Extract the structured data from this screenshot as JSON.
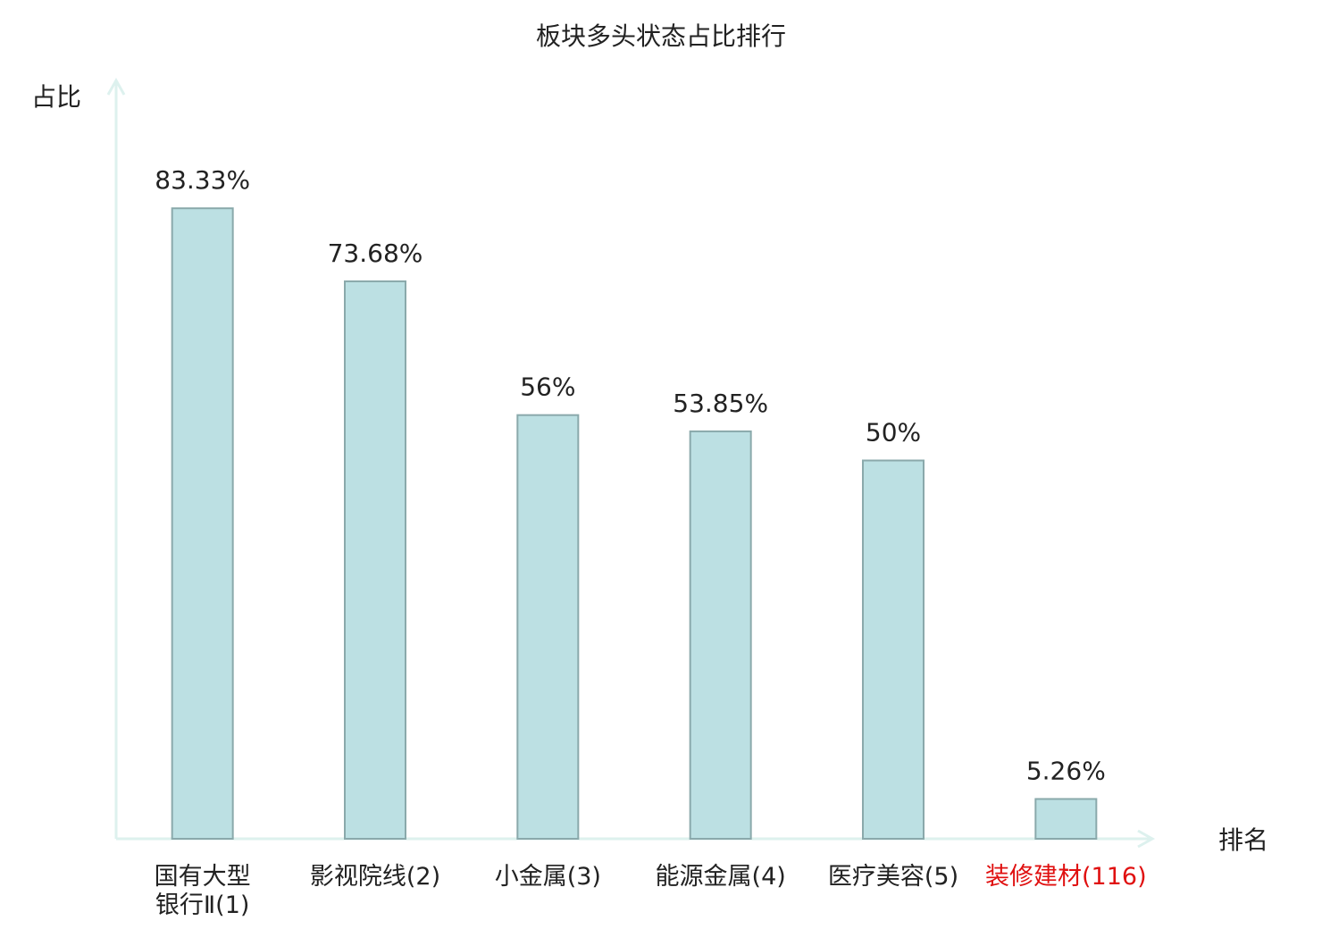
{
  "chart_data": {
    "type": "bar",
    "title": "板块多头状态占比排行",
    "y_label": "占比",
    "x_label": "排名",
    "categories": [
      "国有大型\n银行Ⅱ(1)",
      "影视院线(2)",
      "小金属(3)",
      "能源金属(4)",
      "医疗美容(5)",
      "装修建材(116)"
    ],
    "category_label_colors": [
      "#222222",
      "#222222",
      "#222222",
      "#222222",
      "#222222",
      "#e01010"
    ],
    "values": [
      83.33,
      73.68,
      56,
      53.85,
      50,
      5.26
    ],
    "value_labels": [
      "83.33%",
      "73.68%",
      "56%",
      "53.85%",
      "50%",
      "5.26%"
    ],
    "color": "#bce0e3",
    "edge_color": "#8aa9ab",
    "axis_color": "#ddf1ee",
    "ylim": [
      0,
      100
    ]
  }
}
